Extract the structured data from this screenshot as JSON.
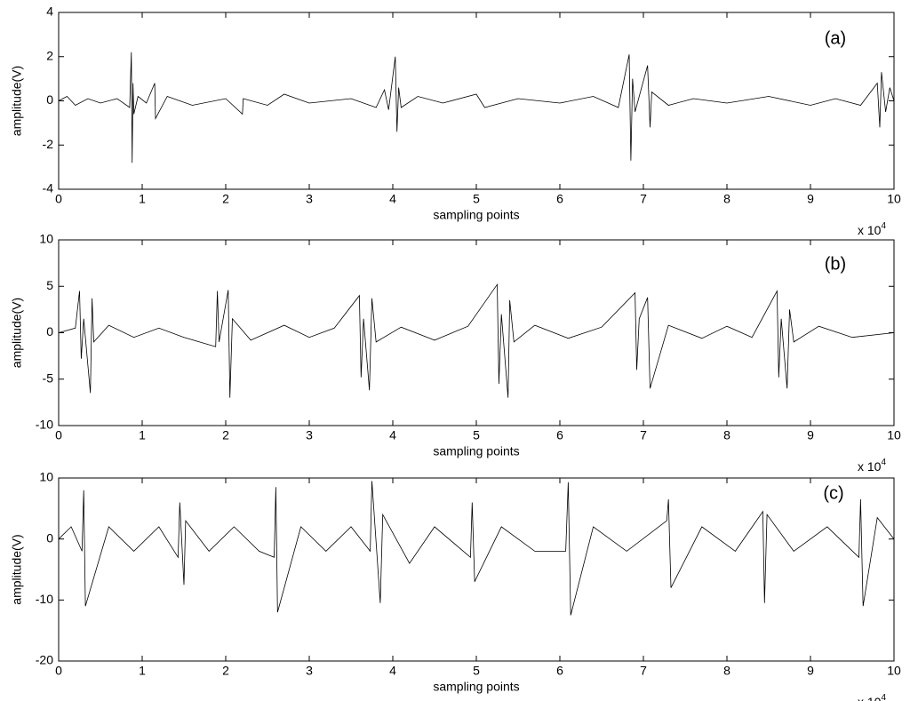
{
  "chart_data": [
    {
      "type": "line",
      "annotation": "(a)",
      "xlabel": "sampling points",
      "ylabel": "amplitude(V)",
      "x_scale_label": "x 10",
      "x_scale_exponent": "4",
      "color": "#000000",
      "xlim": [
        0,
        10
      ],
      "xticks": [
        0,
        1,
        2,
        3,
        4,
        5,
        6,
        7,
        8,
        9,
        10
      ],
      "ylim": [
        -4,
        4
      ],
      "yticks": [
        -4,
        -2,
        0,
        2,
        4
      ],
      "x": [
        0,
        0.1,
        0.2,
        0.35,
        0.5,
        0.7,
        0.85,
        0.87,
        0.88,
        0.89,
        0.9,
        0.95,
        1.05,
        1.15,
        1.16,
        1.3,
        1.6,
        2.0,
        2.2,
        2.21,
        2.5,
        2.7,
        3.0,
        3.5,
        3.8,
        3.9,
        3.95,
        4.03,
        4.05,
        4.07,
        4.1,
        4.3,
        4.6,
        5.0,
        5.1,
        5.5,
        6.0,
        6.4,
        6.7,
        6.83,
        6.85,
        6.87,
        6.9,
        7.05,
        7.08,
        7.1,
        7.3,
        7.6,
        8.0,
        8.5,
        9.0,
        9.3,
        9.6,
        9.8,
        9.83,
        9.85,
        9.9,
        9.95,
        10
      ],
      "values": [
        0,
        0.2,
        -0.2,
        0.1,
        -0.1,
        0.1,
        -0.3,
        2.2,
        -2.8,
        0.8,
        -0.6,
        0.2,
        -0.1,
        0.8,
        -0.8,
        0.2,
        -0.2,
        0.1,
        -0.6,
        0.1,
        -0.2,
        0.3,
        -0.1,
        0.1,
        -0.3,
        0.5,
        -0.4,
        2.0,
        -1.4,
        0.6,
        -0.3,
        0.2,
        -0.1,
        0.3,
        -0.3,
        0.1,
        -0.1,
        0.2,
        -0.3,
        2.1,
        -2.7,
        1.0,
        -0.5,
        1.6,
        -1.2,
        0.4,
        -0.2,
        0.1,
        -0.1,
        0.2,
        -0.2,
        0.1,
        -0.2,
        0.8,
        -1.2,
        1.3,
        -0.5,
        0.6,
        0
      ]
    },
    {
      "type": "line",
      "annotation": "(b)",
      "xlabel": "sampling points",
      "ylabel": "amplitude(V)",
      "x_scale_label": "x 10",
      "x_scale_exponent": "4",
      "color": "#000000",
      "xlim": [
        0,
        10
      ],
      "xticks": [
        0,
        1,
        2,
        3,
        4,
        5,
        6,
        7,
        8,
        9,
        10
      ],
      "ylim": [
        -10,
        10
      ],
      "yticks": [
        -10,
        -5,
        0,
        5,
        10
      ],
      "x": [
        0,
        0.2,
        0.25,
        0.27,
        0.3,
        0.38,
        0.4,
        0.42,
        0.6,
        0.9,
        1.2,
        1.5,
        1.88,
        1.9,
        1.92,
        2.03,
        2.05,
        2.08,
        2.3,
        2.7,
        3.0,
        3.3,
        3.6,
        3.62,
        3.65,
        3.72,
        3.75,
        3.8,
        4.1,
        4.5,
        4.9,
        5.25,
        5.27,
        5.3,
        5.38,
        5.4,
        5.45,
        5.7,
        6.1,
        6.5,
        6.9,
        6.92,
        6.95,
        7.05,
        7.08,
        7.3,
        7.7,
        8.0,
        8.3,
        8.6,
        8.62,
        8.65,
        8.72,
        8.75,
        8.8,
        9.1,
        9.5,
        10
      ],
      "values": [
        0,
        0.5,
        4.5,
        -2.8,
        1.5,
        -6.5,
        3.7,
        -1,
        0.8,
        -0.5,
        0.5,
        -0.5,
        -1.5,
        4.5,
        -1,
        4.6,
        -7,
        1.5,
        -0.8,
        0.8,
        -0.5,
        0.5,
        4,
        -4.8,
        1.5,
        -6.2,
        3.7,
        -1,
        0.6,
        -0.8,
        0.7,
        5.2,
        -5.5,
        2,
        -7,
        3.5,
        -1,
        0.8,
        -0.6,
        0.6,
        4.3,
        -4,
        1.5,
        3.8,
        -6,
        0.8,
        -0.6,
        0.7,
        -0.5,
        4.5,
        -4.8,
        1.5,
        -6,
        2.5,
        -1,
        0.7,
        -0.5,
        0
      ]
    },
    {
      "type": "line",
      "annotation": "(c)",
      "xlabel": "sampling points",
      "ylabel": "amplitude(V)",
      "x_scale_label": "x 10",
      "x_scale_exponent": "4",
      "color": "#000000",
      "xlim": [
        0,
        10
      ],
      "xticks": [
        0,
        1,
        2,
        3,
        4,
        5,
        6,
        7,
        8,
        9,
        10
      ],
      "ylim": [
        -20,
        10
      ],
      "yticks": [
        -20,
        -10,
        0,
        10
      ],
      "x": [
        0,
        0.15,
        0.28,
        0.3,
        0.32,
        0.6,
        0.9,
        1.2,
        1.43,
        1.45,
        1.5,
        1.52,
        1.8,
        2.1,
        2.4,
        2.58,
        2.6,
        2.62,
        2.9,
        3.2,
        3.5,
        3.73,
        3.75,
        3.85,
        3.88,
        4.2,
        4.5,
        4.93,
        4.95,
        4.98,
        5.3,
        5.7,
        6.07,
        6.1,
        6.13,
        6.4,
        6.8,
        7.28,
        7.3,
        7.33,
        7.7,
        8.1,
        8.43,
        8.45,
        8.48,
        8.8,
        9.2,
        9.58,
        9.6,
        9.63,
        9.8,
        10
      ],
      "values": [
        0,
        2,
        -2,
        8,
        -11,
        2,
        -2,
        2,
        -3,
        6,
        -7.5,
        3,
        -2,
        2,
        -2,
        -3,
        8.5,
        -12,
        2,
        -2,
        2,
        -2,
        9.5,
        -10.5,
        4,
        -4,
        2,
        -3,
        6,
        -7,
        2,
        -2,
        -2,
        9.3,
        -12.5,
        2,
        -2,
        3,
        6.5,
        -8,
        2,
        -2,
        4.5,
        -10.5,
        4,
        -2,
        2,
        -3,
        6.5,
        -11,
        3.5,
        0
      ]
    }
  ]
}
